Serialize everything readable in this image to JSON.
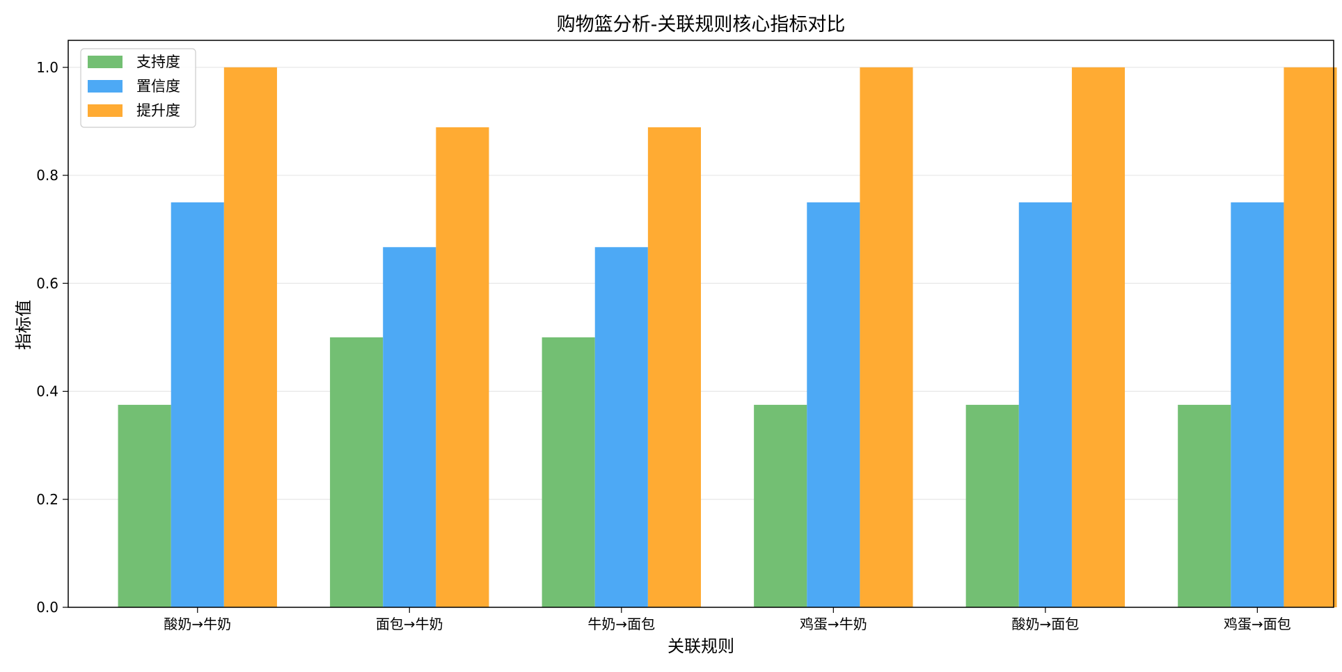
{
  "chart_data": {
    "type": "bar",
    "title": "购物篮分析-关联规则核心指标对比",
    "xlabel": "关联规则",
    "ylabel": "指标值",
    "categories": [
      "酸奶→牛奶",
      "面包→牛奶",
      "牛奶→面包",
      "鸡蛋→牛奶",
      "酸奶→面包",
      "鸡蛋→面包"
    ],
    "series": [
      {
        "name": "支持度",
        "color": "#73bf73",
        "values": [
          0.375,
          0.5,
          0.5,
          0.375,
          0.375,
          0.375
        ]
      },
      {
        "name": "置信度",
        "color": "#4da9f5",
        "values": [
          0.75,
          0.667,
          0.667,
          0.75,
          0.75,
          0.75
        ]
      },
      {
        "name": "提升度",
        "color": "#ffab33",
        "values": [
          1.0,
          0.889,
          0.889,
          1.0,
          1.0,
          1.0
        ]
      }
    ],
    "ylim": [
      0,
      1.05
    ],
    "yticks": [
      "0.0",
      "0.2",
      "0.4",
      "0.6",
      "0.8",
      "1.0"
    ],
    "grid": "y",
    "legend_position": "top-left"
  }
}
